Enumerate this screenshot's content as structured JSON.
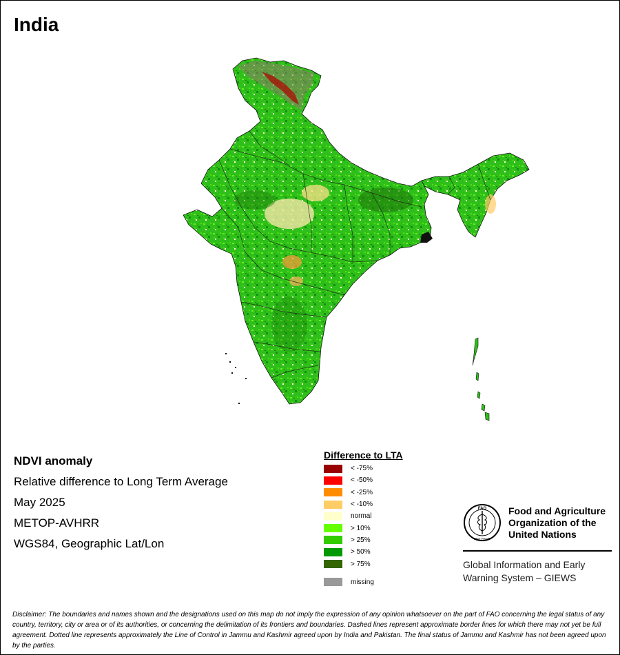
{
  "title": "India",
  "info": {
    "product": "NDVI anomaly",
    "description": "Relative difference to Long Term Average",
    "date": "May 2025",
    "sensor": "METOP-AVHRR",
    "projection": "WGS84, Geographic Lat/Lon"
  },
  "legend": {
    "title": "Difference to LTA",
    "items": [
      {
        "label": "< -75%",
        "color": "#990000"
      },
      {
        "label": "< -50%",
        "color": "#ff0000"
      },
      {
        "label": "< -25%",
        "color": "#ff8c00"
      },
      {
        "label": "< -10%",
        "color": "#ffcc66"
      },
      {
        "label": "normal",
        "color": "#ffffcc"
      },
      {
        "label": "> 10%",
        "color": "#66ff00"
      },
      {
        "label": "> 25%",
        "color": "#33cc00"
      },
      {
        "label": "> 50%",
        "color": "#009900"
      },
      {
        "label": "> 75%",
        "color": "#336600"
      }
    ],
    "missing": {
      "label": "missing",
      "color": "#999999"
    }
  },
  "organization": {
    "name_lines": [
      "Food and Agriculture",
      "Organization of the",
      "United Nations"
    ],
    "logo_text": "FAO",
    "logo_motto": "FIAT PANIS",
    "system_lines": [
      "Global Information and Early",
      "Warning System – GIEWS"
    ]
  },
  "disclaimer": "Disclaimer: The boundaries and names shown and the designations used on this map do not imply the expression of any opinion whatsoever on the part of FAO concerning the legal status of any country, territory, city or area or of its authorities, or concerning the delimitation of its frontiers and boundaries. Dashed lines represent approximate border lines for which there may not yet be full agreement. Dotted line represents approximately the Line of Control in Jammu and Kashmir agreed upon by India and Pakistan. The final status of Jammu and Kashmir has not been agreed upon by the parties."
}
